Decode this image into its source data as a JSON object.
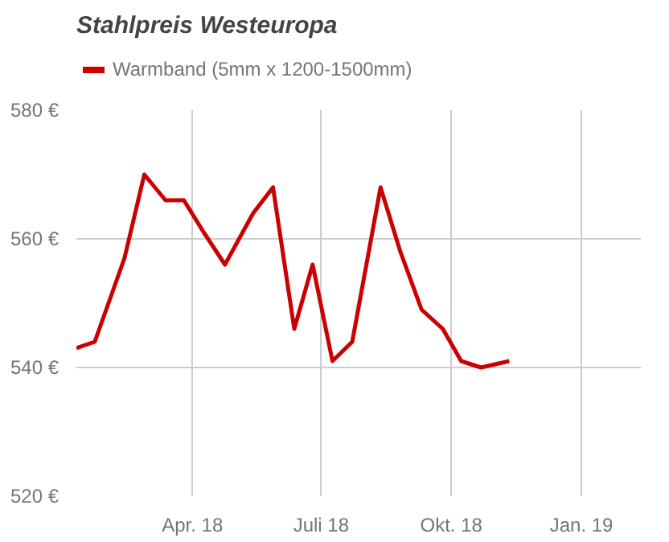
{
  "chart_data": {
    "type": "line",
    "title": "Stahlpreis Westeuropa",
    "x": [
      "2018-01-09",
      "2018-01-22",
      "2018-02-12",
      "2018-02-26",
      "2018-03-13",
      "2018-03-26",
      "2018-04-09",
      "2018-04-24",
      "2018-05-14",
      "2018-05-28",
      "2018-06-12",
      "2018-06-25",
      "2018-07-09",
      "2018-07-23",
      "2018-08-12",
      "2018-08-26",
      "2018-09-10",
      "2018-09-25",
      "2018-10-08",
      "2018-10-22",
      "2018-11-11"
    ],
    "series": [
      {
        "name": "Warmband (5mm x 1200-1500mm)",
        "color": "#cc0000",
        "values": [
          543,
          544,
          557,
          570,
          566,
          566,
          561,
          556,
          564,
          568,
          546,
          556,
          541,
          544,
          568,
          558,
          549,
          546,
          541,
          540,
          541
        ]
      }
    ],
    "xlim": [
      "2018-01-09",
      "2019-02-12"
    ],
    "xticks": [
      {
        "value": "2018-04-01",
        "label": "Apr. 18"
      },
      {
        "value": "2018-07-01",
        "label": "Juli 18"
      },
      {
        "value": "2018-10-01",
        "label": "Okt. 18"
      },
      {
        "value": "2019-01-01",
        "label": "Jan. 19"
      }
    ],
    "ylim": [
      520,
      580
    ],
    "yticks": [
      {
        "value": 520,
        "label": "520 €"
      },
      {
        "value": 540,
        "label": "540 €"
      },
      {
        "value": 560,
        "label": "560 €"
      },
      {
        "value": 580,
        "label": "580 €"
      }
    ],
    "grid": true,
    "legend": "top left",
    "marker": "none",
    "line_style": "solid"
  }
}
